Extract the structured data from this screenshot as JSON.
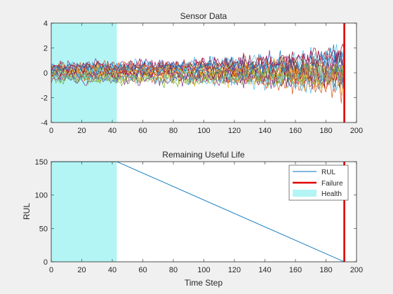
{
  "chart_data": [
    {
      "type": "line",
      "title": "Sensor Data",
      "xlabel": "",
      "ylabel": "",
      "xlim": [
        0,
        200
      ],
      "ylim": [
        -4,
        4
      ],
      "xticks": [
        0,
        20,
        40,
        60,
        80,
        100,
        120,
        140,
        160,
        180,
        200
      ],
      "yticks": [
        -4,
        -2,
        0,
        2,
        4
      ],
      "grid": false,
      "health_region": [
        0,
        43
      ],
      "failure_x": 192,
      "series_count": 21,
      "series_note": "21 noisy sensor traces; amplitude about +/-1.3 near t=0, growing to about +/-3 near t=190",
      "colors": [
        "#0072BD",
        "#D95319",
        "#EDB120",
        "#7E2F8E",
        "#77AC30",
        "#4DBEEE",
        "#A2142F"
      ]
    },
    {
      "type": "line",
      "title": "Remaining Useful Life",
      "xlabel": "Time Step",
      "ylabel": "RUL",
      "xlim": [
        0,
        200
      ],
      "ylim": [
        0,
        150
      ],
      "xticks": [
        0,
        20,
        40,
        60,
        80,
        100,
        120,
        140,
        160,
        180,
        200
      ],
      "yticks": [
        0,
        50,
        100,
        150
      ],
      "grid": false,
      "legend": {
        "position": "top-right",
        "entries": [
          "RUL",
          "Failure",
          "Health"
        ]
      },
      "series": [
        {
          "name": "RUL",
          "x": [
            0,
            43,
            192
          ],
          "y": [
            150,
            150,
            0
          ],
          "color": "#0072BD"
        }
      ],
      "failure_x": 192,
      "health_region": [
        0,
        43
      ],
      "failure_color": "#e00000",
      "health_color": "#b3f5f5"
    }
  ]
}
